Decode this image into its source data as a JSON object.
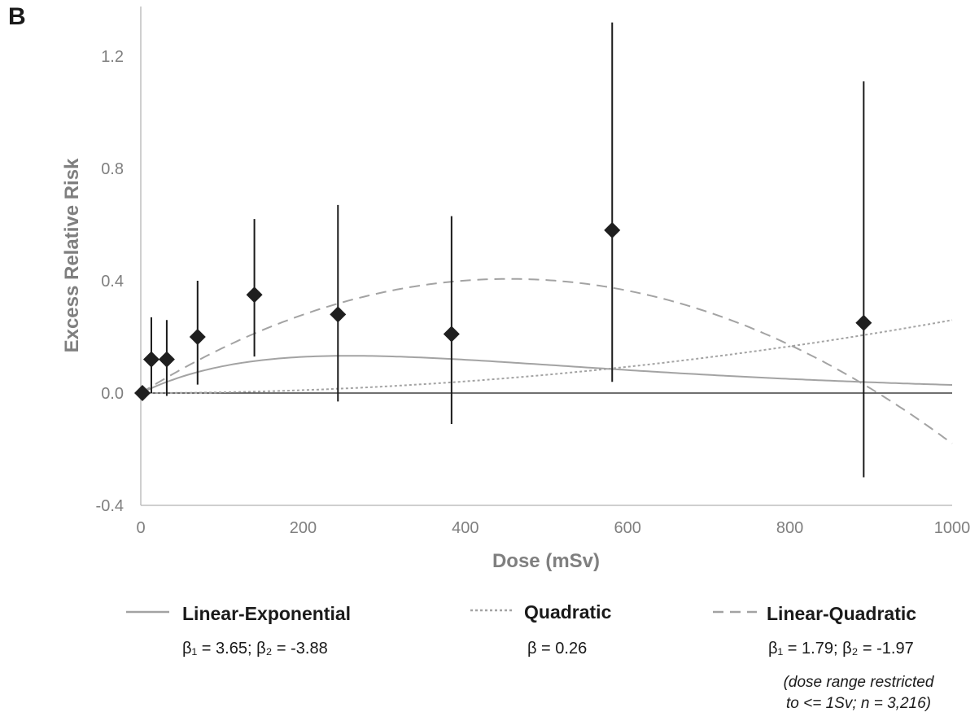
{
  "panel_label": "B",
  "chart_data": {
    "type": "scatter",
    "xlabel": "Dose (mSv)",
    "ylabel": "Excess Relative Risk",
    "xlim": [
      0,
      1000
    ],
    "ylim": [
      -0.4,
      1.3
    ],
    "x_ticks": [
      "0",
      "200",
      "400",
      "600",
      "800",
      "1000"
    ],
    "y_ticks": [
      "-0.4",
      "0.0",
      "0.4",
      "0.8",
      "1.2"
    ],
    "grid": false,
    "points": [
      {
        "x": 2,
        "y": 0.0,
        "lo": 0.0,
        "hi": 0.0
      },
      {
        "x": 13,
        "y": 0.12,
        "lo": 0.0,
        "hi": 0.27
      },
      {
        "x": 32,
        "y": 0.12,
        "lo": -0.01,
        "hi": 0.26
      },
      {
        "x": 70,
        "y": 0.2,
        "lo": 0.03,
        "hi": 0.4
      },
      {
        "x": 140,
        "y": 0.35,
        "lo": 0.13,
        "hi": 0.62
      },
      {
        "x": 243,
        "y": 0.28,
        "lo": -0.03,
        "hi": 0.67
      },
      {
        "x": 383,
        "y": 0.21,
        "lo": -0.11,
        "hi": 0.63
      },
      {
        "x": 581,
        "y": 0.58,
        "lo": 0.04,
        "hi": 1.32
      },
      {
        "x": 891,
        "y": 0.25,
        "lo": -0.3,
        "hi": 1.11
      }
    ],
    "models": [
      {
        "name": "Linear-Exponential",
        "params": "β₁ = 3.65; β₂ = -3.88",
        "color": "#a3a3a3",
        "dash": "solid"
      },
      {
        "name": "Quadratic",
        "params": "β = 0.26",
        "color": "#a3a3a3",
        "dash": "dotted"
      },
      {
        "name": "Linear-Quadratic",
        "params": "β₁ = 1.79; β₂ = -1.97",
        "color": "#a3a3a3",
        "dash": "dashed"
      }
    ],
    "note_line1": "(dose range restricted",
    "note_line2": "to <= 1Sv; n = 3,216)"
  }
}
